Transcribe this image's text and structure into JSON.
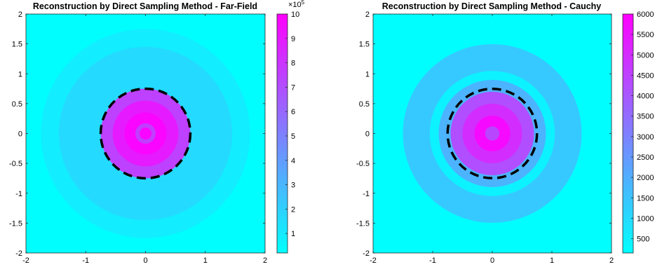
{
  "chart_data": [
    {
      "type": "heatmap",
      "title": "Reconstruction by Direct Sampling Method - Far-Field",
      "xlabel": "",
      "ylabel": "",
      "xlim": [
        -2,
        2
      ],
      "ylim": [
        -2,
        2
      ],
      "x_ticks": [
        "-2",
        "-1",
        "0",
        "1",
        "2"
      ],
      "y_ticks": [
        "2",
        "1.5",
        "1",
        "0.5",
        "0",
        "-0.5",
        "-1",
        "-1.5",
        "-2"
      ],
      "colorbar": {
        "min": 0.2,
        "max": 10,
        "ticks": [
          "10",
          "9",
          "8",
          "7",
          "6",
          "5",
          "4",
          "3",
          "2",
          "1"
        ],
        "exponent_label": "×10",
        "exponent": "5",
        "colormap": "cool"
      },
      "field": {
        "center": [
          0,
          0
        ],
        "rings": [
          {
            "r": 1.75,
            "value": 0.9
          },
          {
            "r": 1.45,
            "value": 1.6
          },
          {
            "r": 0.75,
            "value": 7.5
          },
          {
            "r": 0.55,
            "value": 9.0
          },
          {
            "r": 0.35,
            "value": 9.8
          },
          {
            "r": 0.17,
            "value": 7.6
          },
          {
            "r": 0.1,
            "value": 9.8
          }
        ],
        "background_value": 0.25
      },
      "overlay": {
        "shape": "dashed-circle",
        "r": 0.75,
        "color": "#000000"
      }
    },
    {
      "type": "heatmap",
      "title": "Reconstruction by Direct Sampling Method - Cauchy",
      "xlabel": "",
      "ylabel": "",
      "xlim": [
        -2,
        2
      ],
      "ylim": [
        -2,
        2
      ],
      "x_ticks": [
        "-2",
        "-1",
        "0",
        "1",
        "2"
      ],
      "y_ticks": [
        "2",
        "1.5",
        "1",
        "0.5",
        "0",
        "-0.5",
        "-1",
        "-1.5",
        "-2"
      ],
      "colorbar": {
        "min": 150,
        "max": 6000,
        "ticks": [
          "6000",
          "5500",
          "5000",
          "4500",
          "4000",
          "3500",
          "3000",
          "2500",
          "2000",
          "1500",
          "1000",
          "500"
        ],
        "colormap": "cool"
      },
      "field": {
        "center": [
          0,
          0
        ],
        "rings": [
          {
            "r": 1.5,
            "value": 1400
          },
          {
            "r": 1.05,
            "value": 450
          },
          {
            "r": 0.9,
            "value": 1900
          },
          {
            "r": 0.7,
            "value": 4200
          },
          {
            "r": 0.5,
            "value": 5000
          },
          {
            "r": 0.3,
            "value": 5800
          },
          {
            "r": 0.12,
            "value": 4400
          }
        ],
        "background_value": 180
      },
      "overlay": {
        "shape": "dashed-circle",
        "r": 0.75,
        "color": "#000000"
      }
    }
  ]
}
